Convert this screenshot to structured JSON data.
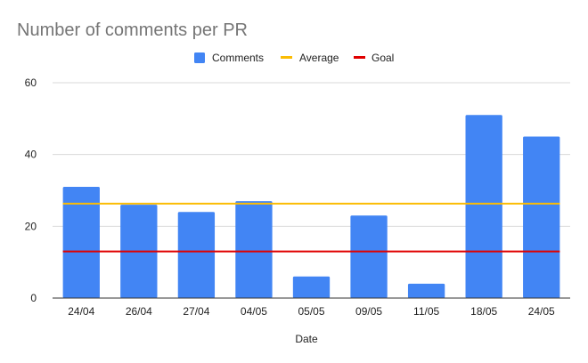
{
  "chart_data": {
    "type": "bar",
    "title": "Number of comments per PR",
    "xlabel": "Date",
    "ylabel": "",
    "categories": [
      "24/04",
      "26/04",
      "27/04",
      "04/05",
      "05/05",
      "09/05",
      "11/05",
      "18/05",
      "24/05"
    ],
    "series": [
      {
        "name": "Comments",
        "kind": "bar",
        "color": "#4285f4",
        "values": [
          31,
          26,
          24,
          27,
          6,
          23,
          4,
          51,
          45
        ]
      },
      {
        "name": "Average",
        "kind": "line",
        "color": "#fbbc04",
        "values": [
          26.3,
          26.3,
          26.3,
          26.3,
          26.3,
          26.3,
          26.3,
          26.3,
          26.3
        ]
      },
      {
        "name": "Goal",
        "kind": "line",
        "color": "#e00000",
        "values": [
          13,
          13,
          13,
          13,
          13,
          13,
          13,
          13,
          13
        ]
      }
    ],
    "ylim": [
      0,
      60
    ],
    "yticks": [
      0,
      20,
      40,
      60
    ],
    "grid": true,
    "legend_position": "top-center"
  }
}
